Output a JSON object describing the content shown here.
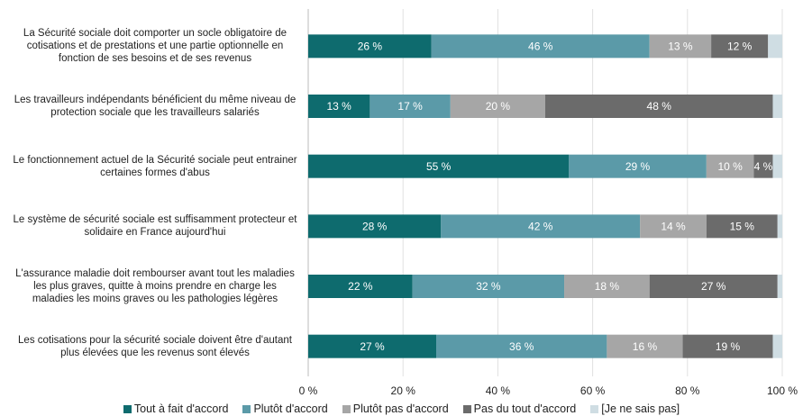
{
  "chart_data": {
    "type": "stacked-barh",
    "categories": [
      "La Sécurité sociale doit comporter un socle obligatoire de cotisations et de prestations et une partie optionnelle en fonction de ses besoins et de ses revenus",
      "Les travailleurs indépendants bénéficient du même niveau de protection sociale que les travailleurs salariés",
      "Le fonctionnement actuel de la Sécurité sociale peut entrainer certaines formes d'abus",
      "Le système de sécurité sociale est suffisamment protecteur et solidaire en France aujourd'hui",
      "L'assurance maladie doit rembourser avant tout les maladies les plus graves, quitte à moins prendre en charge les maladies les moins graves ou les pathologies légères",
      "Les cotisations pour la sécurité sociale doivent être d'autant plus élevées que les revenus sont élevés"
    ],
    "series": [
      {
        "name": "Tout à fait d'accord",
        "color": "#0e6b6e",
        "values": [
          26,
          13,
          55,
          28,
          22,
          27
        ],
        "value_labels": [
          "26 %",
          "13 %",
          "55 %",
          "28 %",
          "22 %",
          "27 %"
        ]
      },
      {
        "name": "Plutôt d'accord",
        "color": "#5b9aa8",
        "values": [
          46,
          17,
          29,
          42,
          32,
          36
        ],
        "value_labels": [
          "46 %",
          "17 %",
          "29 %",
          "42 %",
          "32 %",
          "36 %"
        ]
      },
      {
        "name": "Plutôt pas d'accord",
        "color": "#a6a6a6",
        "values": [
          13,
          20,
          10,
          14,
          18,
          16
        ],
        "value_labels": [
          "13 %",
          "20 %",
          "10 %",
          "14 %",
          "18 %",
          "16 %"
        ]
      },
      {
        "name": "Pas du tout d'accord",
        "color": "#6b6b6b",
        "values": [
          12,
          48,
          4,
          15,
          27,
          19
        ],
        "value_labels": [
          "12 %",
          "48 %",
          "4 %",
          "15 %",
          "27 %",
          "19 %"
        ]
      },
      {
        "name": "[Je ne sais pas]",
        "color": "#cfdde3",
        "values": [
          3,
          2,
          2,
          1,
          1,
          2
        ]
      }
    ],
    "xlim": [
      0,
      100
    ],
    "xticks": [
      {
        "value": 0,
        "label": "0 %"
      },
      {
        "value": 20,
        "label": "20 %"
      },
      {
        "value": 40,
        "label": "40 %"
      },
      {
        "value": 60,
        "label": "60 %"
      },
      {
        "value": 80,
        "label": "80 %"
      },
      {
        "value": 100,
        "label": "100 %"
      }
    ],
    "grid": true,
    "legend": "bottom"
  }
}
